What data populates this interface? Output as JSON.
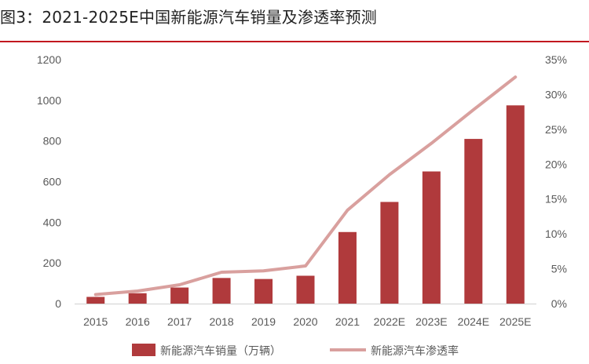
{
  "title": "图3：2021-2025E中国新能源汽车销量及渗透率预测",
  "chart_data": {
    "type": "bar",
    "categories": [
      "2015",
      "2016",
      "2017",
      "2018",
      "2019",
      "2020",
      "2021",
      "2022E",
      "2023E",
      "2024E",
      "2025E"
    ],
    "series": [
      {
        "name": "新能源汽车销量（万辆）",
        "type": "bar",
        "axis": "left",
        "color": "#b03a3c",
        "values": [
          33,
          51,
          79,
          126,
          121,
          137,
          352,
          500,
          650,
          810,
          975
        ]
      },
      {
        "name": "新能源汽车渗透率",
        "type": "line",
        "axis": "right",
        "color": "#d9a09e",
        "values": [
          1.3,
          1.8,
          2.7,
          4.5,
          4.7,
          5.4,
          13.4,
          18.5,
          23.0,
          27.8,
          32.5
        ]
      }
    ],
    "y_left": {
      "range": [
        0,
        1200
      ],
      "ticks": [
        "0",
        "200",
        "400",
        "600",
        "800",
        "1000",
        "1200"
      ]
    },
    "y_right": {
      "range": [
        0,
        35
      ],
      "ticks": [
        "0%",
        "5%",
        "10%",
        "15%",
        "20%",
        "25%",
        "30%",
        "35%"
      ]
    },
    "grid": false,
    "legend": "bottom"
  }
}
